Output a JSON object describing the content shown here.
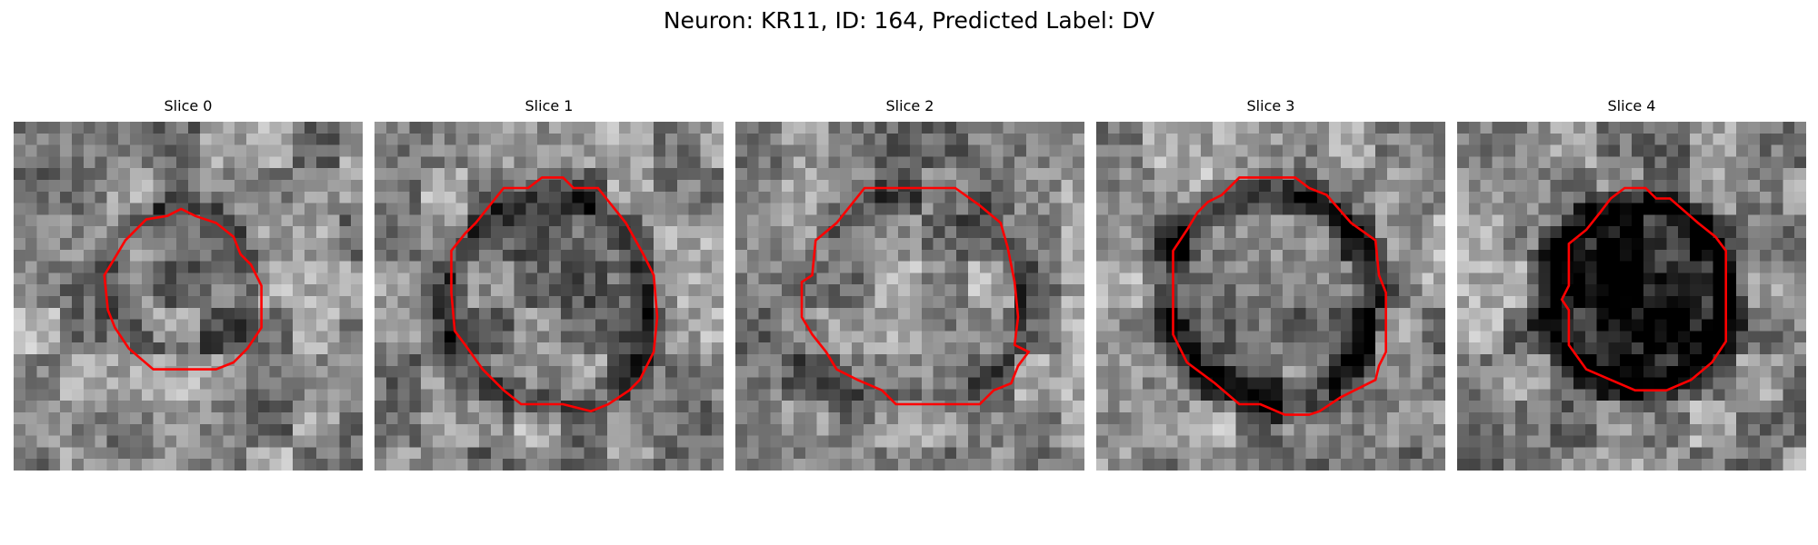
{
  "figure": {
    "title": "Neuron: KR11, ID: 164, Predicted Label: DV"
  },
  "panels": [
    {
      "title": "Slice 0",
      "colormap": "gray",
      "outline_color": "#ff0000",
      "seed": 11,
      "cell_center": [
        0.48,
        0.45
      ],
      "cell_radius": 0.21,
      "cell_darkness": 0.05,
      "membrane_darkness": 0.25,
      "contour": [
        [
          0.48,
          0.25
        ],
        [
          0.52,
          0.27
        ],
        [
          0.58,
          0.29
        ],
        [
          0.63,
          0.33
        ],
        [
          0.65,
          0.38
        ],
        [
          0.68,
          0.41
        ],
        [
          0.71,
          0.47
        ],
        [
          0.71,
          0.59
        ],
        [
          0.67,
          0.65
        ],
        [
          0.63,
          0.69
        ],
        [
          0.58,
          0.71
        ],
        [
          0.4,
          0.71
        ],
        [
          0.33,
          0.65
        ],
        [
          0.29,
          0.59
        ],
        [
          0.27,
          0.54
        ],
        [
          0.26,
          0.44
        ],
        [
          0.29,
          0.39
        ],
        [
          0.32,
          0.34
        ],
        [
          0.38,
          0.28
        ],
        [
          0.44,
          0.27
        ]
      ]
    },
    {
      "title": "Slice 1",
      "colormap": "gray",
      "outline_color": "#ff0000",
      "seed": 23,
      "cell_center": [
        0.5,
        0.52
      ],
      "cell_radius": 0.3,
      "cell_darkness": 0.1,
      "membrane_darkness": 0.3,
      "contour": [
        [
          0.44,
          0.19
        ],
        [
          0.48,
          0.16
        ],
        [
          0.54,
          0.16
        ],
        [
          0.57,
          0.19
        ],
        [
          0.64,
          0.19
        ],
        [
          0.72,
          0.29
        ],
        [
          0.77,
          0.38
        ],
        [
          0.8,
          0.44
        ],
        [
          0.81,
          0.56
        ],
        [
          0.8,
          0.66
        ],
        [
          0.76,
          0.74
        ],
        [
          0.73,
          0.77
        ],
        [
          0.67,
          0.81
        ],
        [
          0.62,
          0.83
        ],
        [
          0.54,
          0.81
        ],
        [
          0.42,
          0.81
        ],
        [
          0.37,
          0.77
        ],
        [
          0.31,
          0.71
        ],
        [
          0.26,
          0.64
        ],
        [
          0.23,
          0.6
        ],
        [
          0.22,
          0.49
        ],
        [
          0.22,
          0.37
        ],
        [
          0.26,
          0.32
        ],
        [
          0.29,
          0.29
        ],
        [
          0.37,
          0.19
        ]
      ]
    },
    {
      "title": "Slice 2",
      "colormap": "gray",
      "outline_color": "#ff0000",
      "seed": 37,
      "cell_center": [
        0.5,
        0.52
      ],
      "cell_radius": 0.31,
      "cell_darkness": 0.0,
      "membrane_darkness": 0.2,
      "contour": [
        [
          0.37,
          0.19
        ],
        [
          0.63,
          0.19
        ],
        [
          0.7,
          0.24
        ],
        [
          0.76,
          0.29
        ],
        [
          0.78,
          0.36
        ],
        [
          0.8,
          0.46
        ],
        [
          0.81,
          0.56
        ],
        [
          0.8,
          0.64
        ],
        [
          0.84,
          0.66
        ],
        [
          0.81,
          0.7
        ],
        [
          0.79,
          0.75
        ],
        [
          0.74,
          0.77
        ],
        [
          0.7,
          0.81
        ],
        [
          0.46,
          0.81
        ],
        [
          0.42,
          0.77
        ],
        [
          0.35,
          0.74
        ],
        [
          0.29,
          0.71
        ],
        [
          0.26,
          0.66
        ],
        [
          0.22,
          0.61
        ],
        [
          0.19,
          0.56
        ],
        [
          0.19,
          0.46
        ],
        [
          0.22,
          0.44
        ],
        [
          0.23,
          0.34
        ],
        [
          0.29,
          0.29
        ]
      ]
    },
    {
      "title": "Slice 3",
      "colormap": "gray",
      "outline_color": "#ff0000",
      "seed": 51,
      "cell_center": [
        0.5,
        0.5
      ],
      "cell_radius": 0.3,
      "cell_darkness": 0.15,
      "membrane_darkness": 0.45,
      "contour": [
        [
          0.41,
          0.16
        ],
        [
          0.57,
          0.16
        ],
        [
          0.61,
          0.19
        ],
        [
          0.66,
          0.21
        ],
        [
          0.73,
          0.29
        ],
        [
          0.8,
          0.34
        ],
        [
          0.81,
          0.44
        ],
        [
          0.83,
          0.49
        ],
        [
          0.83,
          0.66
        ],
        [
          0.81,
          0.7
        ],
        [
          0.8,
          0.74
        ],
        [
          0.74,
          0.77
        ],
        [
          0.7,
          0.79
        ],
        [
          0.64,
          0.83
        ],
        [
          0.61,
          0.84
        ],
        [
          0.54,
          0.84
        ],
        [
          0.47,
          0.81
        ],
        [
          0.41,
          0.81
        ],
        [
          0.34,
          0.75
        ],
        [
          0.26,
          0.69
        ],
        [
          0.22,
          0.61
        ],
        [
          0.22,
          0.37
        ],
        [
          0.26,
          0.31
        ],
        [
          0.29,
          0.26
        ],
        [
          0.32,
          0.23
        ],
        [
          0.36,
          0.21
        ]
      ]
    },
    {
      "title": "Slice 4",
      "colormap": "gray",
      "outline_color": "#ff0000",
      "seed": 67,
      "cell_center": [
        0.52,
        0.5
      ],
      "cell_radius": 0.27,
      "cell_darkness": 0.55,
      "membrane_darkness": 0.5,
      "contour": [
        [
          0.48,
          0.19
        ],
        [
          0.54,
          0.19
        ],
        [
          0.57,
          0.22
        ],
        [
          0.61,
          0.22
        ],
        [
          0.69,
          0.29
        ],
        [
          0.74,
          0.33
        ],
        [
          0.77,
          0.37
        ],
        [
          0.77,
          0.63
        ],
        [
          0.73,
          0.69
        ],
        [
          0.67,
          0.74
        ],
        [
          0.6,
          0.77
        ],
        [
          0.51,
          0.77
        ],
        [
          0.44,
          0.74
        ],
        [
          0.37,
          0.71
        ],
        [
          0.32,
          0.64
        ],
        [
          0.32,
          0.54
        ],
        [
          0.3,
          0.51
        ],
        [
          0.32,
          0.47
        ],
        [
          0.32,
          0.35
        ],
        [
          0.37,
          0.31
        ],
        [
          0.41,
          0.26
        ],
        [
          0.44,
          0.22
        ]
      ]
    }
  ]
}
